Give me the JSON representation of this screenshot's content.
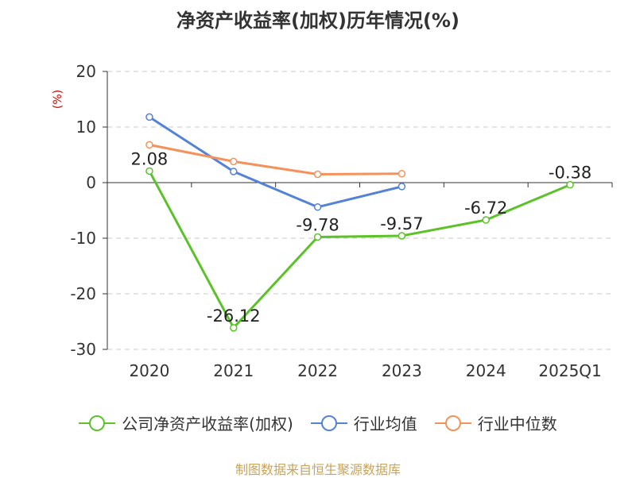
{
  "title": "净资产收益率(加权)历年情况(%)",
  "unit": "(%)",
  "footer": "制图数据来自恒生聚源数据库",
  "colors": {
    "company": "#5cc22a",
    "industry_avg": "#5382d6",
    "industry_median": "#f5915b",
    "unit": "#cc0000",
    "footer": "#c8a45a"
  },
  "chart_data": {
    "type": "line",
    "title": "净资产收益率(加权)历年情况(%)",
    "xlabel": "",
    "ylabel": "(%)",
    "categories": [
      "2020",
      "2021",
      "2022",
      "2023",
      "2024",
      "2025Q1"
    ],
    "ylim": [
      -30,
      20
    ],
    "yticks": [
      20,
      10,
      0,
      -10,
      -20,
      -30
    ],
    "grid": true,
    "legend_position": "bottom",
    "series": [
      {
        "name": "公司净资产收益率(加权)",
        "values": [
          2.08,
          -26.12,
          -9.78,
          -9.57,
          -6.72,
          -0.38
        ],
        "labels": [
          "2.08",
          "-26.12",
          "-9.78",
          "-9.57",
          "-6.72",
          "-0.38"
        ],
        "color": "#5cc22a"
      },
      {
        "name": "行业均值",
        "values": [
          11.8,
          2.0,
          -4.4,
          -0.7,
          null,
          null
        ],
        "color": "#5382d6"
      },
      {
        "name": "行业中位数",
        "values": [
          6.8,
          3.8,
          1.5,
          1.6,
          null,
          null
        ],
        "color": "#f5915b"
      }
    ]
  }
}
